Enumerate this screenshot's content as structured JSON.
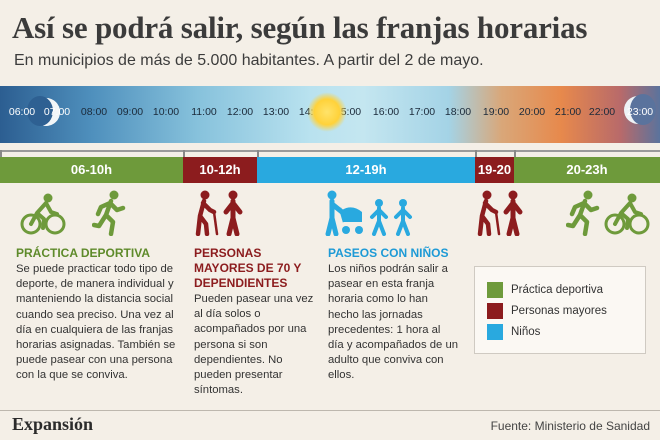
{
  "title": "Así se podrá salir, según las franjas horarias",
  "subtitle": "En municipios de más de 5.000 habitantes. A partir del 2 de mayo.",
  "hours": [
    "06:00",
    "07:00",
    "08:00",
    "09:00",
    "10:00",
    "11:00",
    "12:00",
    "13:00",
    "14:00",
    "15:00",
    "16:00",
    "17:00",
    "18:00",
    "19:00",
    "20:00",
    "21:00",
    "22:00",
    "23:00"
  ],
  "bands": [
    {
      "label": "06-10h",
      "color": "#6e9a3b"
    },
    {
      "label": "10-12h",
      "color": "#8c1c1e"
    },
    {
      "label": "12-19h",
      "color": "#29a9df"
    },
    {
      "label": "19-20",
      "color": "#8c1c1e"
    },
    {
      "label": "20-23h",
      "color": "#6e9a3b"
    }
  ],
  "columns": {
    "sport": {
      "heading": "PRÁCTICA DEPORTIVA",
      "heading_color": "#5e8a2a",
      "body": "Se puede practicar todo tipo de deporte, de manera individual y manteniendo la distancia social cuando sea preciso. Una vez al día  en cualquiera de las franjas horarias asignadas. También se puede pasear con una persona con la que se conviva."
    },
    "elderly": {
      "heading": "PERSONAS MAYORES DE 70 Y DEPENDIENTES",
      "heading_color": "#8c1c1e",
      "body": "Pueden pasear una vez al día solos o acompañados por una persona si son dependientes. No pueden presentar síntomas."
    },
    "kids": {
      "heading": "PASEOS CON NIÑOS",
      "heading_color": "#1d9ad6",
      "body": "Los niños podrán salir a pasear en esta franja horaria como lo han hecho las jornadas precedentes: 1 hora al día y acompañados de un adulto que conviva con ellos."
    }
  },
  "legend": [
    {
      "label": "Práctica deportiva",
      "color": "#6e9a3b"
    },
    {
      "label": "Personas mayores",
      "color": "#8c1c1e"
    },
    {
      "label": "Niños",
      "color": "#29a9df"
    }
  ],
  "footer": {
    "brand": "Expansión",
    "source": "Fuente: Ministerio de Sanidad"
  },
  "icons": [
    "cyclist-icon",
    "runner-icon",
    "elderly-cane-icon",
    "elderly-person-icon",
    "stroller-icon",
    "child-icon",
    "child-icon",
    "runner-icon",
    "cyclist-icon",
    "elderly-person-icon",
    "elderly-cane-icon"
  ]
}
